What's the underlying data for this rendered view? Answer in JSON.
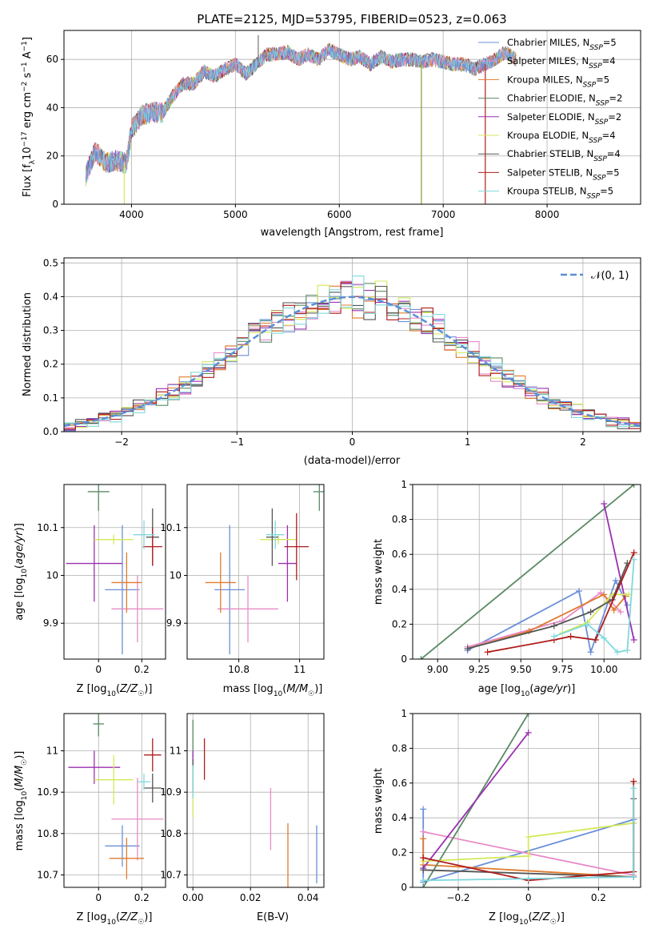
{
  "colors": {
    "Chabrier MILES": "#6a8fd9",
    "Salpeter MILES": "#e88bc8",
    "Kroupa MILES": "#e07b2e",
    "Chabrier ELODIE": "#5b8a66",
    "Salpeter ELODIE": "#9b30b0",
    "Kroupa ELODIE": "#d4e85a",
    "Chabrier STELIB": "#555555",
    "Salpeter STELIB": "#b01c1c",
    "Kroupa STELIB": "#80d8dc"
  },
  "chart_data": [
    {
      "id": "spectrum",
      "type": "line",
      "title": "PLATE=2125, MJD=53795, FIBERID=0523, z=0.063",
      "xlabel": "wavelength [Angstrom, rest frame]",
      "ylabel": "Flux [f_λ 10^−17 erg cm^−2 s^−1 A^−1]",
      "xlim": [
        3350,
        8900
      ],
      "ylim": [
        0,
        72
      ],
      "xticks": [
        4000,
        5000,
        6000,
        7000,
        8000
      ],
      "yticks": [
        0,
        20,
        40,
        60
      ],
      "legend_position": "top-right",
      "series": [
        {
          "name": "Chabrier MILES, N_SSP=5",
          "color_key": "Chabrier MILES"
        },
        {
          "name": "Salpeter MILES, N_SSP=4",
          "color_key": "Salpeter MILES"
        },
        {
          "name": "Kroupa MILES, N_SSP=5",
          "color_key": "Kroupa MILES"
        },
        {
          "name": "Chabrier ELODIE, N_SSP=2",
          "color_key": "Chabrier ELODIE"
        },
        {
          "name": "Salpeter ELODIE, N_SSP=2",
          "color_key": "Salpeter ELODIE"
        },
        {
          "name": "Kroupa ELODIE, N_SSP=4",
          "color_key": "Kroupa ELODIE"
        },
        {
          "name": "Chabrier STELIB, N_SSP=4",
          "color_key": "Chabrier STELIB"
        },
        {
          "name": "Salpeter STELIB, N_SSP=5",
          "color_key": "Salpeter STELIB"
        },
        {
          "name": "Kroupa STELIB, N_SSP=5",
          "color_key": "Kroupa STELIB"
        }
      ],
      "envelope": {
        "x": [
          3560,
          3650,
          3750,
          3850,
          3950,
          4000,
          4100,
          4200,
          4300,
          4400,
          4500,
          4600,
          4700,
          4800,
          4900,
          5000,
          5100,
          5200,
          5300,
          5400,
          5500,
          5600,
          5700,
          5800,
          5900,
          6000,
          6100,
          6200,
          6300,
          6400,
          6500,
          6600,
          6700,
          6800,
          6900,
          7000,
          7100,
          7200,
          7300,
          7400,
          7500,
          7600,
          7700
        ],
        "y": [
          12,
          22,
          17,
          18,
          17,
          31,
          37,
          38,
          38,
          45,
          50,
          50,
          55,
          53,
          56,
          58,
          54,
          58,
          62,
          62,
          63,
          60,
          62,
          60,
          64,
          62,
          60,
          61,
          58,
          61,
          59,
          60,
          60,
          59,
          60,
          59,
          58,
          58,
          56,
          58,
          60,
          63,
          60
        ]
      },
      "spikes": [
        {
          "x": 3930,
          "y": 0
        },
        {
          "x": 5220,
          "y": 70
        },
        {
          "x": 6790,
          "y": 0
        },
        {
          "x": 7405,
          "y": 0
        }
      ]
    },
    {
      "id": "residuals",
      "type": "step",
      "xlabel": "(data-model)/error",
      "ylabel": "Normed distribution",
      "xlim": [
        -2.5,
        2.5
      ],
      "ylim": [
        0,
        0.515
      ],
      "xticks": [
        -2,
        -1,
        0,
        1,
        2
      ],
      "yticks": [
        0.0,
        0.1,
        0.2,
        0.3,
        0.4,
        0.5
      ],
      "reference_curve": {
        "name": "𝒩(0, 1)",
        "mean": 0,
        "sigma": 1,
        "color": "#5b8fd6"
      },
      "bins": {
        "start": -2.5,
        "width": 0.1,
        "count": 50
      }
    },
    {
      "id": "age-vs-Z",
      "type": "errorbar",
      "xlabel": "Z [log10(Z/Z☉)]",
      "ylabel": "age [log10(age/yr)]",
      "xlim": [
        -0.16,
        0.31
      ],
      "ylim": [
        9.825,
        10.19
      ],
      "xticks": [
        0.0,
        0.2
      ],
      "yticks": [
        9.9,
        10.0,
        10.1
      ],
      "points": [
        {
          "model": "Chabrier MILES",
          "x": 0.11,
          "y": 9.97,
          "xerr": 0.08,
          "yerr": 0.135
        },
        {
          "model": "Salpeter MILES",
          "x": 0.18,
          "y": 9.93,
          "xerr": 0.12,
          "yerr": 0.07
        },
        {
          "model": "Kroupa MILES",
          "x": 0.13,
          "y": 9.985,
          "xerr": 0.07,
          "yerr": 0.063
        },
        {
          "model": "Chabrier ELODIE",
          "x": 0.0,
          "y": 10.175,
          "xerr": 0.05,
          "yerr": 0.04
        },
        {
          "model": "Salpeter ELODIE",
          "x": -0.02,
          "y": 10.025,
          "xerr": 0.13,
          "yerr": 0.08
        },
        {
          "model": "Kroupa ELODIE",
          "x": 0.07,
          "y": 10.075,
          "xerr": 0.09,
          "yerr": 0.01
        },
        {
          "model": "Chabrier STELIB",
          "x": 0.25,
          "y": 10.08,
          "xerr": 0.03,
          "yerr": 0.06
        },
        {
          "model": "Salpeter STELIB",
          "x": 0.25,
          "y": 10.06,
          "xerr": 0.045,
          "yerr": 0.04
        },
        {
          "model": "Kroupa STELIB",
          "x": 0.21,
          "y": 10.085,
          "xerr": 0.05,
          "yerr": 0.03
        }
      ]
    },
    {
      "id": "age-vs-mass",
      "type": "errorbar",
      "xlabel": "mass [log10(M/M☉)]",
      "xlim": [
        10.63,
        11.08
      ],
      "ylim": [
        9.825,
        10.19
      ],
      "xticks": [
        10.8,
        11.0
      ],
      "yticks": [
        9.9,
        10.0,
        10.1
      ],
      "points": [
        {
          "model": "Chabrier MILES",
          "x": 10.77,
          "y": 9.97,
          "xerr": 0.05,
          "yerr": 0.135
        },
        {
          "model": "Salpeter MILES",
          "x": 10.83,
          "y": 9.93,
          "xerr": 0.1,
          "yerr": 0.07
        },
        {
          "model": "Kroupa MILES",
          "x": 10.74,
          "y": 9.985,
          "xerr": 0.05,
          "yerr": 0.063
        },
        {
          "model": "Chabrier ELODIE",
          "x": 11.065,
          "y": 10.175,
          "xerr": 0.02,
          "yerr": 0.04
        },
        {
          "model": "Salpeter ELODIE",
          "x": 10.96,
          "y": 10.025,
          "xerr": 0.03,
          "yerr": 0.08
        },
        {
          "model": "Kroupa ELODIE",
          "x": 10.93,
          "y": 10.075,
          "xerr": 0.06,
          "yerr": 0.01
        },
        {
          "model": "Chabrier STELIB",
          "x": 10.91,
          "y": 10.08,
          "xerr": 0.02,
          "yerr": 0.06
        },
        {
          "model": "Salpeter STELIB",
          "x": 10.99,
          "y": 10.06,
          "xerr": 0.04,
          "yerr": 0.07
        },
        {
          "model": "Kroupa STELIB",
          "x": 10.92,
          "y": 10.085,
          "xerr": 0.03,
          "yerr": 0.03
        }
      ]
    },
    {
      "id": "weight-vs-age",
      "type": "line",
      "xlabel": "age [log10(age/yr)]",
      "ylabel": "mass weight",
      "xlim": [
        8.85,
        10.22
      ],
      "ylim": [
        0,
        1
      ],
      "xticks": [
        9.0,
        9.25,
        9.5,
        9.75,
        10.0
      ],
      "xticklabels": [
        "9.00",
        "9.25",
        "9.50",
        "9.75",
        "10.00"
      ],
      "yticks": [
        0.0,
        0.2,
        0.4,
        0.6,
        0.8,
        1.0
      ],
      "series": [
        {
          "model": "Chabrier MILES",
          "x": [
            9.18,
            9.85,
            9.92,
            10.07,
            10.14
          ],
          "y": [
            0.05,
            0.39,
            0.04,
            0.45,
            0.31
          ]
        },
        {
          "model": "Salpeter MILES",
          "x": [
            9.18,
            9.75,
            9.98,
            10.03,
            10.1
          ],
          "y": [
            0.07,
            0.22,
            0.38,
            0.34,
            0.27
          ]
        },
        {
          "model": "Kroupa MILES",
          "x": [
            9.18,
            9.55,
            10.0,
            10.06,
            10.13
          ],
          "y": [
            0.06,
            0.16,
            0.37,
            0.28,
            0.36
          ]
        },
        {
          "model": "Chabrier ELODIE",
          "x": [
            8.9,
            10.18
          ],
          "y": [
            0.0,
            1.0
          ]
        },
        {
          "model": "Salpeter ELODIE",
          "x": [
            10.0,
            10.18
          ],
          "y": [
            0.89,
            0.11
          ]
        },
        {
          "model": "Kroupa ELODIE",
          "x": [
            9.75,
            9.9,
            10.05,
            10.15
          ],
          "y": [
            0.15,
            0.21,
            0.37,
            0.37
          ]
        },
        {
          "model": "Chabrier STELIB",
          "x": [
            9.18,
            9.7,
            9.92,
            10.05,
            10.14
          ],
          "y": [
            0.06,
            0.19,
            0.27,
            0.34,
            0.55
          ]
        },
        {
          "model": "Salpeter STELIB",
          "x": [
            9.3,
            9.7,
            9.8,
            9.95,
            10.18
          ],
          "y": [
            0.04,
            0.11,
            0.13,
            0.11,
            0.61
          ]
        },
        {
          "model": "Kroupa STELIB",
          "x": [
            9.7,
            9.9,
            10.0,
            10.08,
            10.14,
            10.18
          ],
          "y": [
            0.13,
            0.2,
            0.12,
            0.04,
            0.05,
            0.57
          ]
        }
      ]
    },
    {
      "id": "mass-vs-Z",
      "type": "errorbar",
      "xlabel": "Z [log10(Z/Z☉)]",
      "ylabel": "mass [log10(M/M☉)]",
      "xlim": [
        -0.16,
        0.31
      ],
      "ylim": [
        10.67,
        11.09
      ],
      "xticks": [
        0.0,
        0.2
      ],
      "yticks": [
        10.7,
        10.8,
        10.9,
        11.0
      ],
      "points": [
        {
          "model": "Chabrier MILES",
          "x": 0.11,
          "y": 10.77,
          "xerr": 0.08,
          "yerr": 0.05
        },
        {
          "model": "Salpeter MILES",
          "x": 0.18,
          "y": 10.835,
          "xerr": 0.12,
          "yerr": 0.1
        },
        {
          "model": "Kroupa MILES",
          "x": 0.13,
          "y": 10.74,
          "xerr": 0.08,
          "yerr": 0.05
        },
        {
          "model": "Chabrier ELODIE",
          "x": 0.0,
          "y": 11.065,
          "xerr": 0.025,
          "yerr": 0.03
        },
        {
          "model": "Salpeter ELODIE",
          "x": -0.02,
          "y": 10.96,
          "xerr": 0.12,
          "yerr": 0.04
        },
        {
          "model": "Kroupa ELODIE",
          "x": 0.07,
          "y": 10.93,
          "xerr": 0.09,
          "yerr": 0.06
        },
        {
          "model": "Chabrier STELIB",
          "x": 0.25,
          "y": 10.91,
          "xerr": 0.04,
          "yerr": 0.035
        },
        {
          "model": "Salpeter STELIB",
          "x": 0.25,
          "y": 10.99,
          "xerr": 0.04,
          "yerr": 0.04
        },
        {
          "model": "Kroupa STELIB",
          "x": 0.21,
          "y": 10.925,
          "xerr": 0.03,
          "yerr": 0.02
        }
      ]
    },
    {
      "id": "mass-vs-EBV",
      "type": "errorbar",
      "xlabel": "E(B-V)",
      "xlim": [
        -0.002,
        0.0455
      ],
      "ylim": [
        10.67,
        11.09
      ],
      "xticks": [
        0.0,
        0.02,
        0.04
      ],
      "xticklabels": [
        "0.00",
        "0.02",
        "0.04"
      ],
      "yticks": [
        10.7,
        10.8,
        10.9,
        11.0
      ],
      "points": [
        {
          "model": "Chabrier MILES",
          "x": 0.043,
          "y": 10.75,
          "xerr": 0,
          "yerr": 0.07
        },
        {
          "model": "Salpeter MILES",
          "x": 0.027,
          "y": 10.835,
          "xerr": 0,
          "yerr": 0.075
        },
        {
          "model": "Kroupa MILES",
          "x": 0.033,
          "y": 10.74,
          "xerr": 0,
          "yerr": 0.085
        },
        {
          "model": "Chabrier ELODIE",
          "x": 0.0,
          "y": 11.03,
          "xerr": 0,
          "yerr": 0.045
        },
        {
          "model": "Salpeter ELODIE",
          "x": 0.0,
          "y": 10.975,
          "xerr": 0,
          "yerr": 0.025
        },
        {
          "model": "Kroupa ELODIE",
          "x": 0.0,
          "y": 10.9,
          "xerr": 0,
          "yerr": 0.06
        },
        {
          "model": "Chabrier STELIB",
          "x": 0.0,
          "y": 10.94,
          "xerr": 0,
          "yerr": 0.04
        },
        {
          "model": "Salpeter STELIB",
          "x": 0.004,
          "y": 10.98,
          "xerr": 0,
          "yerr": 0.05
        },
        {
          "model": "Kroupa STELIB",
          "x": 0.0,
          "y": 10.925,
          "xerr": 0,
          "yerr": 0.04
        }
      ]
    },
    {
      "id": "weight-vs-Z",
      "type": "line",
      "xlabel": "Z [log10(Z/Z☉)]",
      "ylabel": "mass weight",
      "xlim": [
        -0.33,
        0.32
      ],
      "ylim": [
        0,
        1
      ],
      "xticks": [
        -0.2,
        0.0,
        0.2
      ],
      "yticks": [
        0.0,
        0.2,
        0.4,
        0.6,
        0.8,
        1.0
      ],
      "series": [
        {
          "model": "Chabrier MILES",
          "x": [
            -0.3,
            -0.3,
            0.3
          ],
          "y": [
            0.45,
            0.03,
            0.39
          ]
        },
        {
          "model": "Salpeter MILES",
          "x": [
            -0.3,
            0.3
          ],
          "y": [
            0.32,
            0.07
          ]
        },
        {
          "model": "Kroupa MILES",
          "x": [
            -0.3,
            -0.3,
            0.3,
            0.3
          ],
          "y": [
            0.28,
            0.13,
            0.06,
            0.37
          ]
        },
        {
          "model": "Chabrier ELODIE",
          "x": [
            -0.3,
            0.0
          ],
          "y": [
            0.0,
            1.0
          ]
        },
        {
          "model": "Salpeter ELODIE",
          "x": [
            -0.3,
            0.0
          ],
          "y": [
            0.11,
            0.89
          ]
        },
        {
          "model": "Kroupa ELODIE",
          "x": [
            -0.3,
            0.0,
            0.0,
            0.3
          ],
          "y": [
            0.15,
            0.18,
            0.29,
            0.37
          ]
        },
        {
          "model": "Chabrier STELIB",
          "x": [
            -0.3,
            0.3,
            0.3
          ],
          "y": [
            0.1,
            0.06,
            0.51
          ]
        },
        {
          "model": "Salpeter STELIB",
          "x": [
            -0.3,
            0.0,
            0.3,
            0.3
          ],
          "y": [
            0.17,
            0.04,
            0.09,
            0.61
          ]
        },
        {
          "model": "Kroupa STELIB",
          "x": [
            -0.3,
            0.0,
            0.3,
            0.3
          ],
          "y": [
            0.04,
            0.05,
            0.06,
            0.57
          ]
        }
      ]
    }
  ]
}
